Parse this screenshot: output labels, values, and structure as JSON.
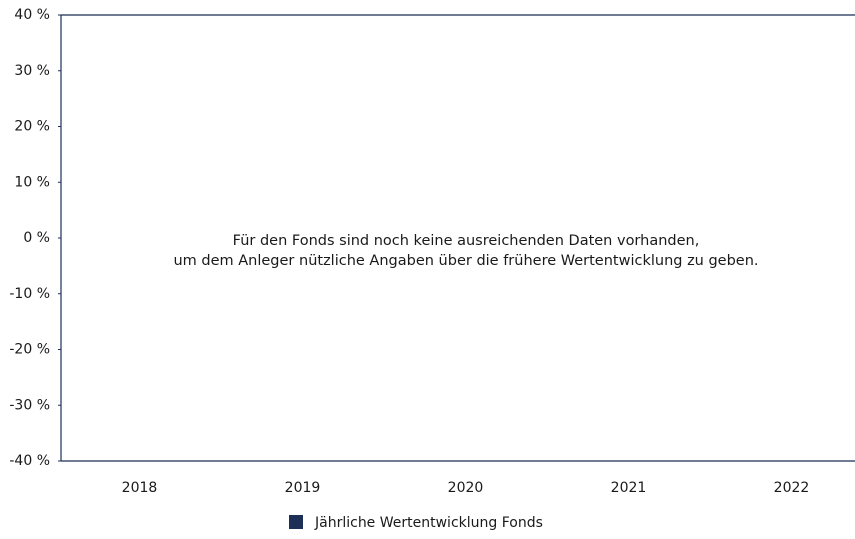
{
  "chart_data": {
    "type": "bar",
    "categories": [
      "2018",
      "2019",
      "2020",
      "2021",
      "2022"
    ],
    "series": [
      {
        "name": "Jährliche Wertentwicklung Fonds",
        "color": "#1b2f57",
        "values": [
          null,
          null,
          null,
          null,
          null
        ]
      }
    ],
    "ylim": [
      -40,
      40
    ],
    "yticks": [
      {
        "value": -40,
        "label": "-40 %"
      },
      {
        "value": -30,
        "label": "-30 %"
      },
      {
        "value": -20,
        "label": "-20 %"
      },
      {
        "value": -10,
        "label": "-10 %"
      },
      {
        "value": 0,
        "label": "0 %"
      },
      {
        "value": 10,
        "label": "10 %"
      },
      {
        "value": 20,
        "label": "20 %"
      },
      {
        "value": 30,
        "label": "30 %"
      },
      {
        "value": 40,
        "label": "40 %"
      }
    ],
    "annotation": [
      "Für den Fonds sind noch keine ausreichenden Daten vorhanden,",
      "um dem Anleger nützliche Angaben über die frühere Wertentwicklung zu geben."
    ],
    "legend": "bottom"
  }
}
